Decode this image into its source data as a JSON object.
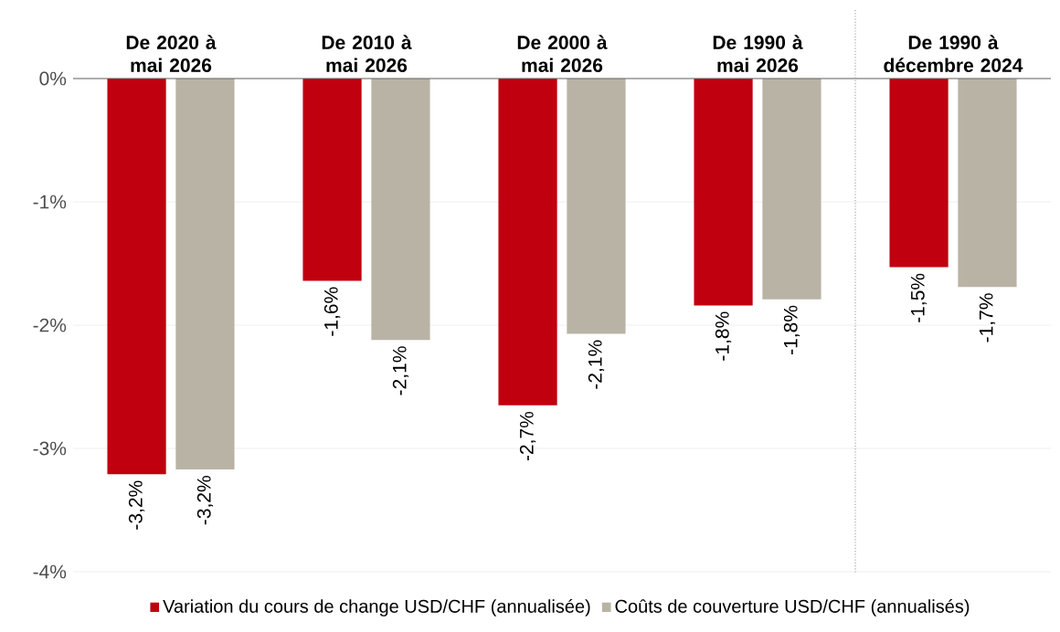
{
  "chart_data": {
    "type": "bar",
    "categories": [
      "De 2020 à mai 2026",
      "De 2010 à mai 2026",
      "De 2000 à mai 2026",
      "De 1990 à mai 2026",
      "De 1990 à décembre 2024"
    ],
    "series": [
      {
        "name": "Variation du cours de change USD/CHF (annualisée)",
        "color": "#c0000f",
        "values": [
          -3.21,
          -1.64,
          -2.65,
          -1.84,
          -1.53
        ],
        "value_labels": [
          "-3,2%",
          "-1,6%",
          "-2,7%",
          "-1,8%",
          "-1,5%"
        ]
      },
      {
        "name": "Coûts de couverture USD/CHF (annualisés)",
        "color": "#b8b3a5",
        "values": [
          -3.17,
          -2.12,
          -2.07,
          -1.79,
          -1.69
        ],
        "value_labels": [
          "-3,2%",
          "-2,1%",
          "-2,1%",
          "-1,8%",
          "-1,7%"
        ]
      }
    ],
    "ylim": [
      -4,
      0
    ],
    "yticks": [
      {
        "value": 0,
        "label": "0%"
      },
      {
        "value": -1,
        "label": "-1%"
      },
      {
        "value": -2,
        "label": "-2%"
      },
      {
        "value": -3,
        "label": "-3%"
      },
      {
        "value": -4,
        "label": "-4%"
      }
    ],
    "grid": "y",
    "legend": "bottom"
  }
}
